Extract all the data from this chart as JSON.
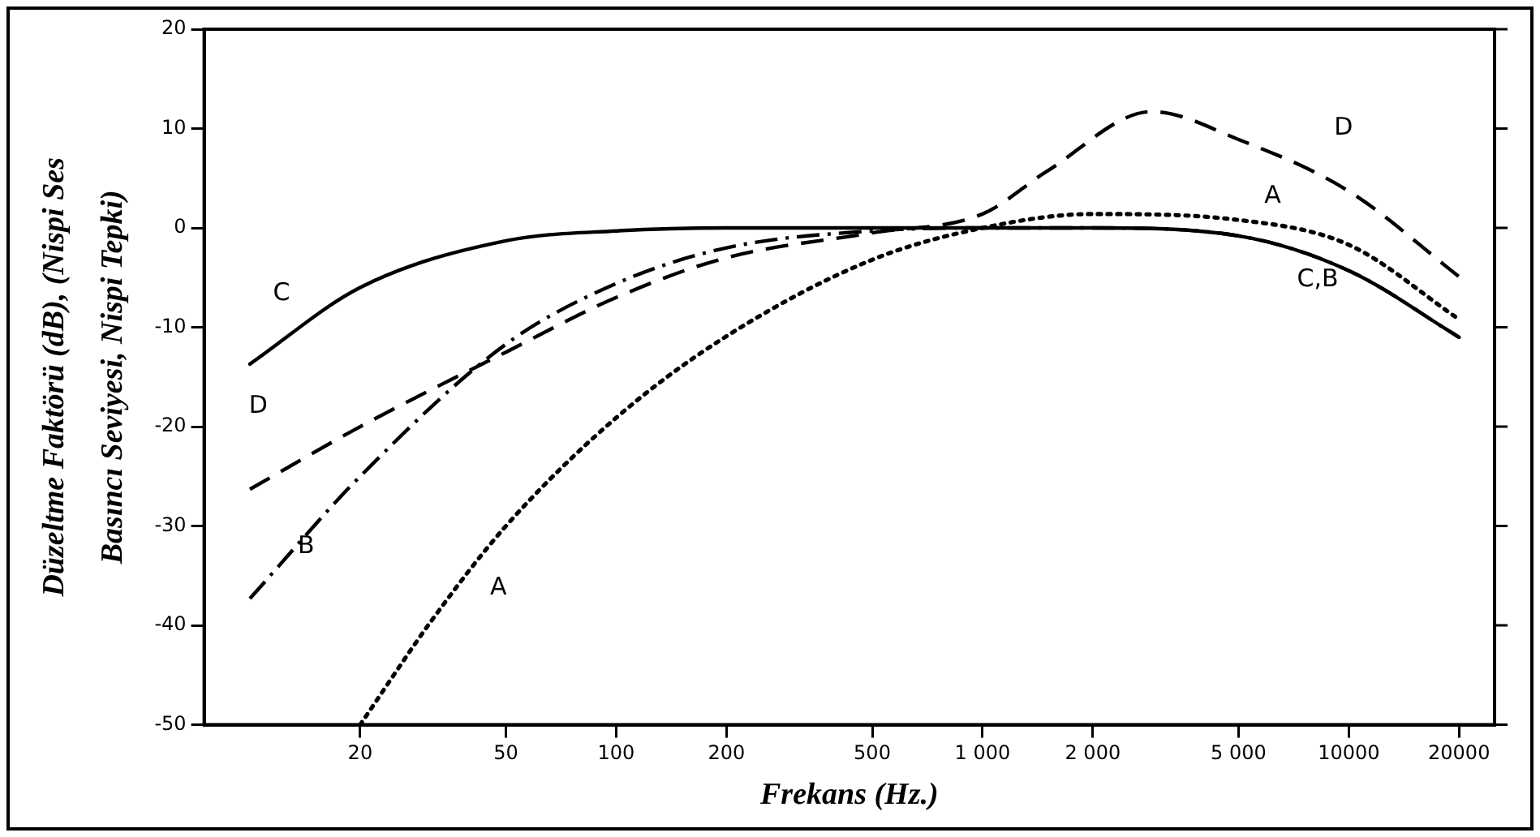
{
  "chart_data": {
    "type": "line",
    "xlabel": "Frekans (Hz.)",
    "ylabel": "Düzeltme Faktörü (dB), (Nispi Ses\nBasıncı Seviyesi, Nispi Tepki)",
    "log": "x",
    "grid": false,
    "legend": false,
    "marker": "none",
    "xlim": [
      7.5,
      25000
    ],
    "xticks": [
      20,
      50,
      100,
      200,
      500,
      {
        "value": 1000,
        "label": "1 000"
      },
      {
        "value": 2000,
        "label": "2 000"
      },
      {
        "value": 5000,
        "label": "5 000"
      },
      10000,
      20000
    ],
    "ylim": [
      -50,
      20
    ],
    "yticks": [
      -50,
      -40,
      -30,
      -20,
      -10,
      0,
      10,
      20
    ],
    "series": [
      {
        "color": "#000000",
        "line_style": "dotted",
        "x": [
          20,
          31.5,
          50,
          100,
          200,
          500,
          1000,
          2000,
          5000,
          10000,
          20000
        ],
        "values": [
          -50,
          -39.4,
          -30,
          -19.1,
          -10.9,
          -3.2,
          0,
          1.4,
          0.8,
          -1.7,
          -9.2
        ]
      },
      {
        "color": "#000000",
        "line_style": "dashdot",
        "x": [
          10,
          20,
          50,
          100,
          200,
          500,
          1000,
          2000,
          5000,
          10000,
          20000
        ],
        "values": [
          -37.3,
          -25,
          -11.7,
          -5.6,
          -2,
          -0.3,
          0,
          0,
          -0.8,
          -4.3,
          -11
        ]
      },
      {
        "color": "#000000",
        "line_style": "solid",
        "x": [
          10,
          20,
          50,
          100,
          200,
          500,
          1000,
          2000,
          5000,
          10000,
          20000
        ],
        "values": [
          -13.7,
          -6,
          -1.3,
          -0.3,
          0,
          0,
          0,
          0,
          -0.8,
          -4.3,
          -11
        ]
      },
      {
        "color": "#000000",
        "line_style": "dashed",
        "x": [
          10,
          20,
          50,
          100,
          200,
          500,
          1000,
          1500,
          2900,
          5000,
          10000,
          20000
        ],
        "values": [
          -26.3,
          -20,
          -12.5,
          -7,
          -3,
          -0.5,
          1.4,
          5.7,
          11.7,
          8.9,
          3.7,
          -4.9
        ]
      }
    ],
    "annotations": [
      "C",
      "D",
      "B",
      "A",
      "D",
      "A",
      "C,B"
    ]
  }
}
